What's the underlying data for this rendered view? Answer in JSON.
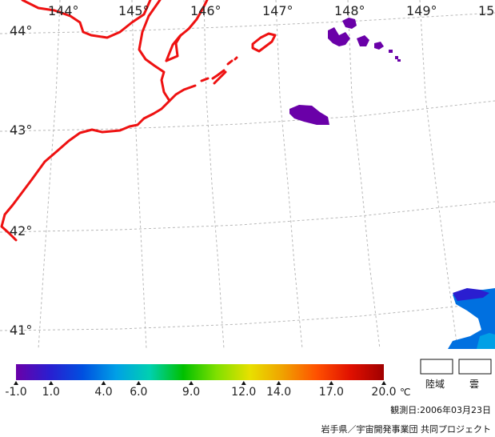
{
  "map": {
    "longitude_labels": [
      "144°",
      "145°",
      "146°",
      "147°",
      "148°",
      "149°",
      "15"
    ],
    "latitude_labels": [
      "44°",
      "43°",
      "42°",
      "41°"
    ],
    "colors": {
      "coastline": "#ee1111",
      "grid": "#b8b8b8"
    }
  },
  "colorbar": {
    "stops": [
      "#6a00a8",
      "#2a1ed0",
      "#0050e0",
      "#00a0e6",
      "#00d0b0",
      "#00c000",
      "#80e000",
      "#e8e000",
      "#f0a000",
      "#ff5000",
      "#e01000",
      "#a00000"
    ],
    "ticks": [
      "-1.0",
      "1.0",
      "4.0",
      "6.0",
      "9.0",
      "12.0",
      "14.0",
      "17.0",
      "20.0"
    ],
    "unit": "℃"
  },
  "legend": {
    "land_label": "陸域",
    "cloud_label": "雲"
  },
  "footer": {
    "date_text": "観測日:2006年03月23日",
    "credit_text": "岩手県／宇宙開発事業団 共同プロジェクト"
  }
}
